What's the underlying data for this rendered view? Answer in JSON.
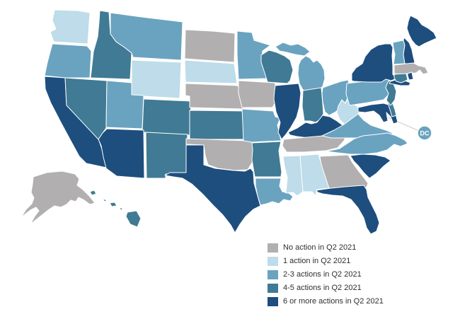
{
  "map": {
    "region": "United States choropleth of state actions in Q2 2021",
    "dc_label": "DC",
    "states": [
      {
        "code": "WA",
        "name": "Washington",
        "category": "one"
      },
      {
        "code": "OR",
        "name": "Oregon",
        "category": "two_three"
      },
      {
        "code": "CA",
        "name": "California",
        "category": "six_plus"
      },
      {
        "code": "NV",
        "name": "Nevada",
        "category": "four_five"
      },
      {
        "code": "ID",
        "name": "Idaho",
        "category": "four_five"
      },
      {
        "code": "MT",
        "name": "Montana",
        "category": "two_three"
      },
      {
        "code": "WY",
        "name": "Wyoming",
        "category": "one"
      },
      {
        "code": "UT",
        "name": "Utah",
        "category": "two_three"
      },
      {
        "code": "CO",
        "name": "Colorado",
        "category": "four_five"
      },
      {
        "code": "AZ",
        "name": "Arizona",
        "category": "six_plus"
      },
      {
        "code": "NM",
        "name": "New Mexico",
        "category": "four_five"
      },
      {
        "code": "ND",
        "name": "North Dakota",
        "category": "none"
      },
      {
        "code": "SD",
        "name": "South Dakota",
        "category": "one"
      },
      {
        "code": "NE",
        "name": "Nebraska",
        "category": "none"
      },
      {
        "code": "KS",
        "name": "Kansas",
        "category": "four_five"
      },
      {
        "code": "OK",
        "name": "Oklahoma",
        "category": "none"
      },
      {
        "code": "TX",
        "name": "Texas",
        "category": "six_plus"
      },
      {
        "code": "MN",
        "name": "Minnesota",
        "category": "two_three"
      },
      {
        "code": "IA",
        "name": "Iowa",
        "category": "none"
      },
      {
        "code": "MO",
        "name": "Missouri",
        "category": "two_three"
      },
      {
        "code": "AR",
        "name": "Arkansas",
        "category": "four_five"
      },
      {
        "code": "LA",
        "name": "Louisiana",
        "category": "two_three"
      },
      {
        "code": "WI",
        "name": "Wisconsin",
        "category": "four_five"
      },
      {
        "code": "IL",
        "name": "Illinois",
        "category": "six_plus"
      },
      {
        "code": "MI",
        "name": "Michigan",
        "category": "two_three"
      },
      {
        "code": "IN",
        "name": "Indiana",
        "category": "four_five"
      },
      {
        "code": "OH",
        "name": "Ohio",
        "category": "two_three"
      },
      {
        "code": "KY",
        "name": "Kentucky",
        "category": "six_plus"
      },
      {
        "code": "TN",
        "name": "Tennessee",
        "category": "none"
      },
      {
        "code": "MS",
        "name": "Mississippi",
        "category": "one"
      },
      {
        "code": "AL",
        "name": "Alabama",
        "category": "one"
      },
      {
        "code": "GA",
        "name": "Georgia",
        "category": "none"
      },
      {
        "code": "FL",
        "name": "Florida",
        "category": "six_plus"
      },
      {
        "code": "SC",
        "name": "South Carolina",
        "category": "six_plus"
      },
      {
        "code": "NC",
        "name": "North Carolina",
        "category": "two_three"
      },
      {
        "code": "VA",
        "name": "Virginia",
        "category": "two_three"
      },
      {
        "code": "WV",
        "name": "West Virginia",
        "category": "one"
      },
      {
        "code": "MD",
        "name": "Maryland",
        "category": "six_plus"
      },
      {
        "code": "DE",
        "name": "Delaware",
        "category": "four_five"
      },
      {
        "code": "PA",
        "name": "Pennsylvania",
        "category": "two_three"
      },
      {
        "code": "NJ",
        "name": "New Jersey",
        "category": "four_five"
      },
      {
        "code": "NY",
        "name": "New York",
        "category": "six_plus"
      },
      {
        "code": "CT",
        "name": "Connecticut",
        "category": "four_five"
      },
      {
        "code": "RI",
        "name": "Rhode Island",
        "category": "six_plus"
      },
      {
        "code": "MA",
        "name": "Massachusetts",
        "category": "none"
      },
      {
        "code": "VT",
        "name": "Vermont",
        "category": "two_three"
      },
      {
        "code": "NH",
        "name": "New Hampshire",
        "category": "six_plus"
      },
      {
        "code": "ME",
        "name": "Maine",
        "category": "six_plus"
      },
      {
        "code": "AK",
        "name": "Alaska",
        "category": "none"
      },
      {
        "code": "HI",
        "name": "Hawaii",
        "category": "four_five"
      },
      {
        "code": "DC",
        "name": "District of Columbia",
        "category": "two_three"
      }
    ]
  },
  "legend": {
    "items": [
      {
        "key": "none",
        "label": "No action in Q2 2021",
        "color": "#b2afb0"
      },
      {
        "key": "one",
        "label": "1 action in Q2 2021",
        "color": "#bedce9"
      },
      {
        "key": "two_three",
        "label": "2-3 actions in Q2 2021",
        "color": "#6aa3c0"
      },
      {
        "key": "four_five",
        "label": "4-5 actions in Q2 2021",
        "color": "#407a95"
      },
      {
        "key": "six_plus",
        "label": "6 or more actions in Q2 2021",
        "color": "#1d4e7e"
      }
    ]
  },
  "style": {
    "background": "#ffffff",
    "state_border": "#ffffff",
    "callout_line": "#cccccc"
  }
}
